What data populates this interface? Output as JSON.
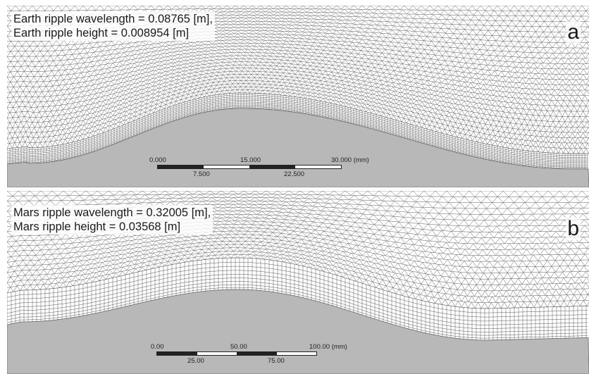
{
  "colors": {
    "mesh_line": "#5a5a5a",
    "ground": "#b8b8b8",
    "background": "#ffffff",
    "scalebar_dark": "#222222"
  },
  "panels": [
    {
      "id": "a",
      "caption_line1": "Earth ripple wavelength = 0.08765 [m],",
      "caption_line2": "Earth ripple height = 0.008954 [m]",
      "tag": "a",
      "scalebar": {
        "top_labels": [
          "0.000",
          "15.000",
          "30.000 (mm)"
        ],
        "bottom_labels": [
          "7.500",
          "22.500"
        ]
      }
    },
    {
      "id": "b",
      "caption_line1": "Mars ripple wavelength = 0.32005 [m],",
      "caption_line2": "Mars ripple height = 0.03568 [m]",
      "tag": "b",
      "scalebar": {
        "top_labels": [
          "0.00",
          "50.00",
          "100.00 (mm)"
        ],
        "bottom_labels": [
          "25.00",
          "75.00"
        ]
      }
    }
  ]
}
